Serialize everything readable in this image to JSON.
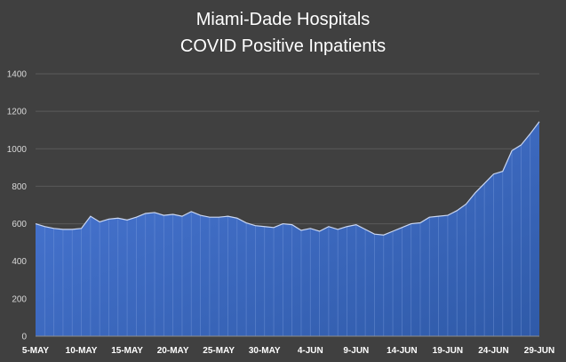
{
  "chart_data": {
    "type": "area",
    "title": "Miami-Dade Hospitals",
    "subtitle": "COVID Positive Inpatients",
    "xlabel": "",
    "ylabel": "",
    "ylim": [
      0,
      1400
    ],
    "y_ticks": [
      "0",
      "200",
      "400",
      "600",
      "800",
      "1000",
      "1200",
      "1400"
    ],
    "x_ticks": [
      "5-MAY",
      "10-MAY",
      "15-MAY",
      "20-MAY",
      "25-MAY",
      "30-MAY",
      "4-JUN",
      "9-JUN",
      "14-JUN",
      "19-JUN",
      "24-JUN",
      "29-JUN"
    ],
    "grid": true,
    "legend": "none",
    "colors": {
      "fill_top": "#4a78d6",
      "fill_bottom": "#2f5aa8",
      "line": "#c9d6f2",
      "grid": "#5a5a5a",
      "background": "#404040"
    },
    "x": [
      "5-May",
      "6-May",
      "7-May",
      "8-May",
      "9-May",
      "10-May",
      "11-May",
      "12-May",
      "13-May",
      "14-May",
      "15-May",
      "16-May",
      "17-May",
      "18-May",
      "19-May",
      "20-May",
      "21-May",
      "22-May",
      "23-May",
      "24-May",
      "25-May",
      "26-May",
      "27-May",
      "28-May",
      "29-May",
      "30-May",
      "31-May",
      "1-Jun",
      "2-Jun",
      "3-Jun",
      "4-Jun",
      "5-Jun",
      "6-Jun",
      "7-Jun",
      "8-Jun",
      "9-Jun",
      "10-Jun",
      "11-Jun",
      "12-Jun",
      "13-Jun",
      "14-Jun",
      "15-Jun",
      "16-Jun",
      "17-Jun",
      "18-Jun",
      "19-Jun",
      "20-Jun",
      "21-Jun",
      "22-Jun",
      "23-Jun",
      "24-Jun",
      "25-Jun",
      "26-Jun",
      "27-Jun",
      "28-Jun",
      "29-Jun"
    ],
    "values": [
      600,
      585,
      575,
      570,
      570,
      575,
      640,
      610,
      625,
      630,
      620,
      635,
      655,
      660,
      645,
      650,
      640,
      665,
      645,
      635,
      635,
      640,
      630,
      605,
      590,
      585,
      580,
      600,
      595,
      565,
      575,
      560,
      585,
      570,
      585,
      595,
      570,
      545,
      540,
      560,
      580,
      600,
      605,
      635,
      640,
      645,
      670,
      705,
      765,
      815,
      865,
      880,
      990,
      1020,
      1080,
      1145
    ]
  }
}
